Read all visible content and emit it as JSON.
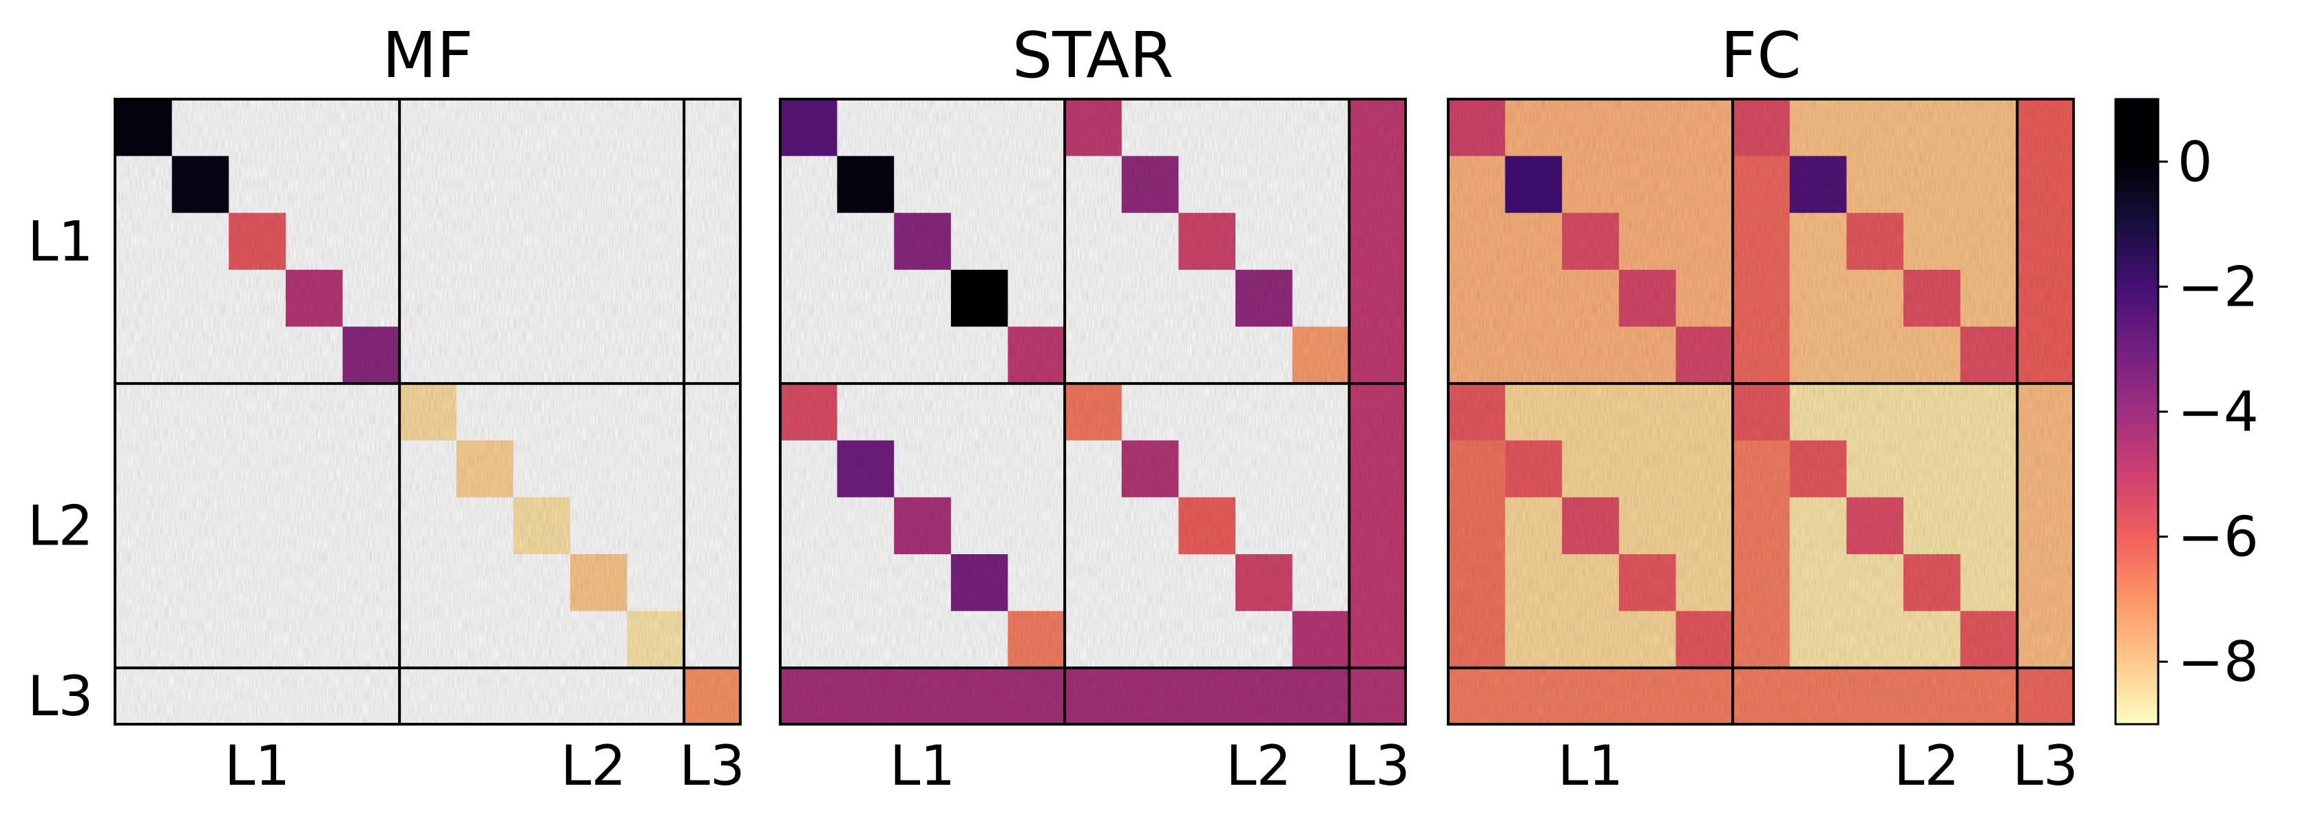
{
  "chart_data": {
    "type": "heatmap",
    "description_levels": [
      "L1",
      "L2",
      "L3"
    ],
    "panels": [
      {
        "title": "MF",
        "row_labels": [
          "L1",
          "L2",
          "L3"
        ],
        "col_labels": [
          "L1",
          "L2",
          "L3"
        ],
        "block_values": {
          "L1": [
            -0.2,
            -0.3,
            -5.8,
            -4.6,
            -3.6
          ],
          "L2": [
            -8.4,
            -8.2,
            -8.5,
            -8.0,
            -8.6
          ],
          "L3": [
            -7.0
          ]
        }
      },
      {
        "title": "STAR",
        "row_labels": [
          "L1",
          "L2",
          "L3"
        ],
        "col_labels": [
          "L1",
          "L2",
          "L3"
        ],
        "block_values": {
          "L1": [
            -2.5,
            -0.2,
            -3.6,
            0.0,
            -4.8
          ],
          "L2_diag": [
            -6.5,
            -4.5,
            -6.0,
            -5.2,
            -4.6
          ],
          "L1_L2": [
            -4.8,
            -3.8,
            -5.2,
            -3.8,
            -7.2
          ],
          "L2_L1": [
            -5.5,
            -3.0,
            -4.3,
            -3.2,
            -6.6
          ],
          "L3": [
            -4.5
          ],
          "L3_row": [
            -4.2
          ]
        }
      },
      {
        "title": "FC",
        "row_labels": [
          "L1",
          "L2",
          "L3"
        ],
        "col_labels": [
          "L1",
          "L2",
          "L3"
        ],
        "block_values": {
          "L1": [
            -5.2,
            -2.0,
            -5.5,
            -5.3,
            -5.3
          ],
          "L2": [
            -5.8,
            -5.8,
            -5.5,
            -5.8,
            -5.8
          ],
          "off_diag_L1": [
            -7.6
          ],
          "off_diag_L2": [
            -8.6
          ],
          "L3": [
            -6.2
          ]
        }
      }
    ],
    "colorbar": {
      "colormap": "magma",
      "vmin": -9,
      "vmax": 1,
      "ticks": [
        0,
        -2,
        -4,
        -6,
        -8
      ],
      "tick_labels": [
        "0",
        "−2",
        "−4",
        "−6",
        "−8"
      ]
    }
  }
}
